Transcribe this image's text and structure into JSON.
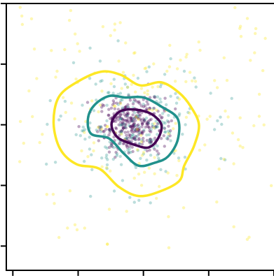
{
  "chart_data": {
    "type": "scatter",
    "title": "",
    "xlabel": "",
    "ylabel": "",
    "xlim": [
      -4.2,
      4.0
    ],
    "ylim": [
      -4.8,
      4.0
    ],
    "x_ticks": [
      -4,
      -2,
      0,
      2,
      4
    ],
    "y_ticks": [
      -4,
      -2,
      0,
      2,
      4
    ],
    "x_tick_labels": [],
    "y_tick_labels": [],
    "grid": false,
    "colors": {
      "inner": "#440154",
      "middle": "#21918c",
      "outer": "#fde725",
      "axis": "#000000",
      "background": "#ffffff"
    },
    "point_groups": [
      {
        "level": "inner",
        "count": 320,
        "center": [
          -0.35,
          0.0
        ],
        "std": [
          0.5,
          0.45
        ],
        "opacity": 0.35
      },
      {
        "level": "middle",
        "count": 220,
        "center": [
          -0.35,
          -0.05
        ],
        "std": [
          1.05,
          0.95
        ],
        "opacity": 0.3
      },
      {
        "level": "outer",
        "count": 230,
        "center": [
          -0.1,
          0.2
        ],
        "std": [
          2.4,
          2.2
        ],
        "opacity": 0.35
      }
    ],
    "contours": [
      {
        "level": "outer",
        "points": [
          [
            -2.75,
            0.05
          ],
          [
            -2.6,
            0.9
          ],
          [
            -2.05,
            1.4
          ],
          [
            -1.3,
            1.75
          ],
          [
            -0.7,
            1.65
          ],
          [
            -0.1,
            1.3
          ],
          [
            0.55,
            1.4
          ],
          [
            1.1,
            1.05
          ],
          [
            1.45,
            0.6
          ],
          [
            1.7,
            0.0
          ],
          [
            1.55,
            -0.7
          ],
          [
            1.25,
            -1.35
          ],
          [
            1.1,
            -1.85
          ],
          [
            0.5,
            -2.2
          ],
          [
            -0.15,
            -2.35
          ],
          [
            -0.75,
            -2.05
          ],
          [
            -1.35,
            -1.45
          ],
          [
            -2.05,
            -1.3
          ],
          [
            -2.55,
            -0.8
          ]
        ]
      },
      {
        "level": "middle",
        "points": [
          [
            -1.7,
            0.2
          ],
          [
            -1.5,
            0.65
          ],
          [
            -1.05,
            0.95
          ],
          [
            -0.55,
            0.9
          ],
          [
            0.0,
            0.9
          ],
          [
            0.55,
            0.6
          ],
          [
            1.05,
            0.2
          ],
          [
            1.05,
            -0.5
          ],
          [
            0.75,
            -1.05
          ],
          [
            0.35,
            -1.25
          ],
          [
            -0.15,
            -1.35
          ],
          [
            -0.6,
            -0.95
          ],
          [
            -1.05,
            -0.45
          ],
          [
            -1.6,
            -0.3
          ]
        ]
      },
      {
        "level": "inner",
        "points": [
          [
            -0.95,
            0.15
          ],
          [
            -0.7,
            0.45
          ],
          [
            -0.25,
            0.5
          ],
          [
            0.25,
            0.35
          ],
          [
            0.55,
            0.0
          ],
          [
            0.45,
            -0.45
          ],
          [
            0.15,
            -0.75
          ],
          [
            -0.3,
            -0.65
          ],
          [
            -0.75,
            -0.45
          ],
          [
            -0.95,
            -0.15
          ]
        ]
      }
    ]
  }
}
